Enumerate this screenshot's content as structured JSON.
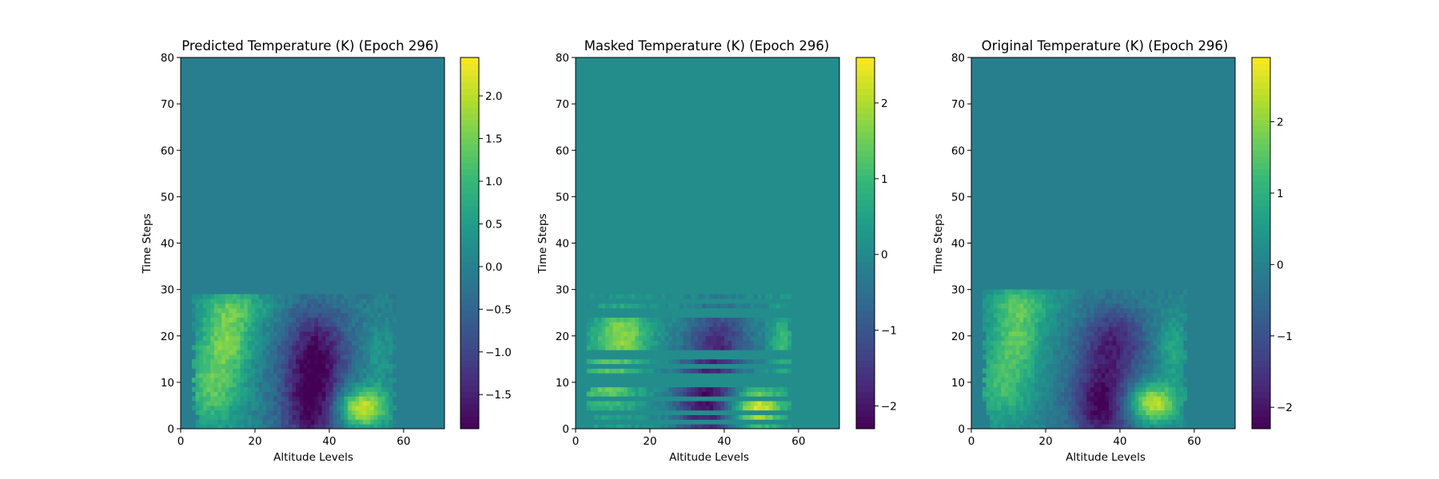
{
  "figure": {
    "background": "#ffffff"
  },
  "chart_data": [
    {
      "type": "heatmap",
      "title": "Predicted Temperature (K) (Epoch 296)",
      "xlabel": "Altitude Levels",
      "ylabel": "Time Steps",
      "xlim": [
        0,
        71
      ],
      "ylim": [
        0,
        80
      ],
      "xticks": [
        0,
        20,
        40,
        60
      ],
      "yticks": [
        0,
        10,
        20,
        30,
        40,
        50,
        60,
        70,
        80
      ],
      "colormap": "viridis",
      "colorbar": {
        "vmin": -1.9,
        "vmax": 2.45,
        "ticks": [
          -1.5,
          -1.0,
          -0.5,
          0.0,
          0.5,
          1.0,
          1.5,
          2.0
        ],
        "tick_labels": [
          "−1.5",
          "−1.0",
          "−0.5",
          "0.0",
          "0.5",
          "1.0",
          "1.5",
          "2.0"
        ]
      },
      "background_value": -0.05,
      "data_region": {
        "x": [
          3,
          58
        ],
        "y": [
          0,
          29
        ]
      },
      "features": [
        {
          "x": 12,
          "y": 19,
          "sx": 5,
          "sy": 5,
          "amp": 1.4
        },
        {
          "x": 8,
          "y": 8,
          "sx": 6,
          "sy": 6,
          "amp": 1.3
        },
        {
          "x": 14,
          "y": 26,
          "sx": 7,
          "sy": 3,
          "amp": 0.9
        },
        {
          "x": 35,
          "y": 5,
          "sx": 6,
          "sy": 8,
          "amp": -1.9
        },
        {
          "x": 36,
          "y": 18,
          "sx": 6,
          "sy": 6,
          "amp": -1.2
        },
        {
          "x": 48,
          "y": 4,
          "sx": 5,
          "sy": 3,
          "amp": 2.3
        },
        {
          "x": 53,
          "y": 15,
          "sx": 3,
          "sy": 5,
          "amp": 0.5
        }
      ],
      "masked_rows": []
    },
    {
      "type": "heatmap",
      "title": "Masked Temperature (K) (Epoch 296)",
      "xlabel": "Altitude Levels",
      "ylabel": "Time Steps",
      "xlim": [
        0,
        71
      ],
      "ylim": [
        0,
        80
      ],
      "xticks": [
        0,
        20,
        40,
        60
      ],
      "yticks": [
        0,
        10,
        20,
        30,
        40,
        50,
        60,
        70,
        80
      ],
      "colormap": "viridis",
      "colorbar": {
        "vmin": -2.3,
        "vmax": 2.6,
        "ticks": [
          -2,
          -1,
          0,
          1,
          2
        ],
        "tick_labels": [
          "−2",
          "−1",
          "0",
          "1",
          "2"
        ]
      },
      "background_value": 0.1,
      "data_region": {
        "x": [
          3,
          58
        ],
        "y": [
          0,
          29
        ]
      },
      "features": [
        {
          "x": 12,
          "y": 20,
          "sx": 5,
          "sy": 4,
          "amp": 1.6
        },
        {
          "x": 8,
          "y": 9,
          "sx": 6,
          "sy": 5,
          "amp": 1.3
        },
        {
          "x": 35,
          "y": 5,
          "sx": 6,
          "sy": 7,
          "amp": -2.3
        },
        {
          "x": 38,
          "y": 19,
          "sx": 6,
          "sy": 5,
          "amp": -1.5
        },
        {
          "x": 48,
          "y": 4,
          "sx": 5,
          "sy": 3,
          "amp": 2.4
        },
        {
          "x": 55,
          "y": 18,
          "sx": 2,
          "sy": 5,
          "amp": 1.0
        }
      ],
      "masked_rows": [
        1,
        3,
        6,
        9,
        10,
        11,
        13,
        15,
        16,
        24,
        25,
        27,
        29
      ]
    },
    {
      "type": "heatmap",
      "title": "Original Temperature (K) (Epoch 296)",
      "xlabel": "Altitude Levels",
      "ylabel": "Time Steps",
      "xlim": [
        0,
        71
      ],
      "ylim": [
        0,
        80
      ],
      "xticks": [
        0,
        20,
        40,
        60
      ],
      "yticks": [
        0,
        10,
        20,
        30,
        40,
        50,
        60,
        70,
        80
      ],
      "colormap": "viridis",
      "colorbar": {
        "vmin": -2.3,
        "vmax": 2.9,
        "ticks": [
          -2,
          -1,
          0,
          1,
          2
        ],
        "tick_labels": [
          "−2",
          "−1",
          "0",
          "1",
          "2"
        ]
      },
      "background_value": -0.05,
      "data_region": {
        "x": [
          3,
          58
        ],
        "y": [
          0,
          30
        ]
      },
      "features": [
        {
          "x": 12,
          "y": 20,
          "sx": 5,
          "sy": 5,
          "amp": 1.4
        },
        {
          "x": 8,
          "y": 9,
          "sx": 6,
          "sy": 6,
          "amp": 1.3
        },
        {
          "x": 13,
          "y": 27,
          "sx": 7,
          "sy": 3,
          "amp": 1.0
        },
        {
          "x": 35,
          "y": 5,
          "sx": 6,
          "sy": 7,
          "amp": -2.3
        },
        {
          "x": 38,
          "y": 19,
          "sx": 6,
          "sy": 5,
          "amp": -1.5
        },
        {
          "x": 48,
          "y": 5,
          "sx": 5,
          "sy": 3,
          "amp": 2.6
        },
        {
          "x": 54,
          "y": 17,
          "sx": 3,
          "sy": 5,
          "amp": 0.9
        }
      ],
      "masked_rows": []
    }
  ]
}
